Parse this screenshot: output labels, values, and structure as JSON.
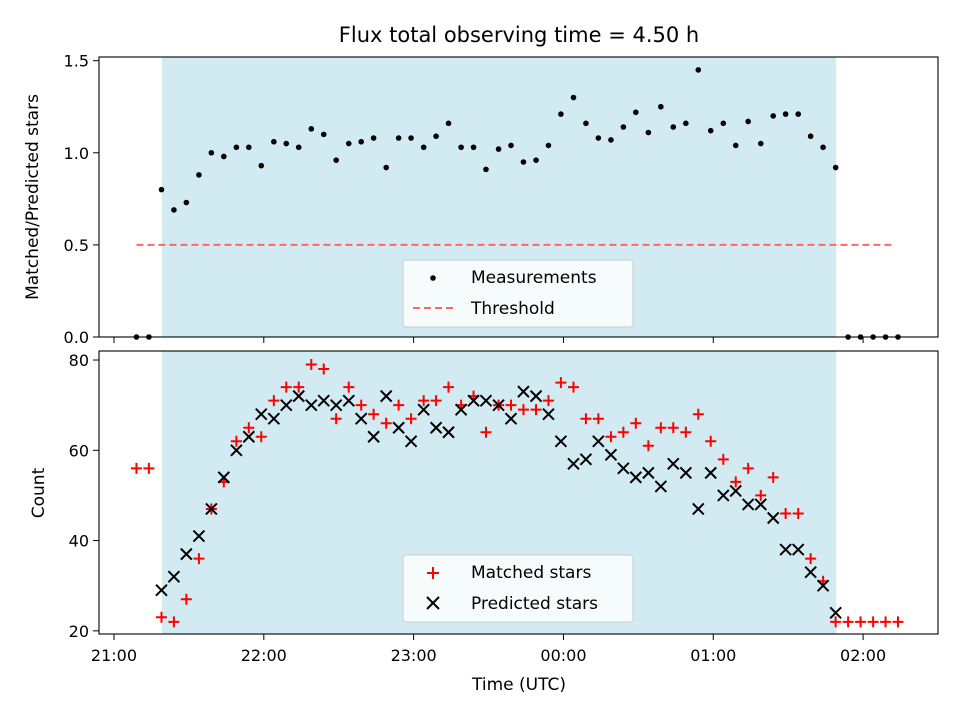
{
  "chart_data": [
    {
      "type": "scatter",
      "title": "Flux total observing time = 4.50 h",
      "ylabel": "Matched/Predicted stars",
      "xlabel": "",
      "ylim": [
        0,
        1.52
      ],
      "yticks": [
        0.0,
        0.5,
        1.0,
        1.5
      ],
      "ytick_labels": [
        "0.0",
        "0.5",
        "1.0",
        "1.5"
      ],
      "x_unit": "hours since 21:00 UTC",
      "shaded_interval": [
        0.32,
        4.82
      ],
      "shaded_color": "#add8e6",
      "threshold": {
        "name": "Threshold",
        "value": 0.5,
        "x_range": [
          0.15,
          5.2
        ],
        "color": "#ff6666",
        "style": "dashed"
      },
      "legend": {
        "position": "lower center",
        "entries": [
          "Measurements",
          "Threshold"
        ]
      },
      "series": [
        {
          "name": "Measurements",
          "color": "#000000",
          "marker": "dot",
          "x": [
            0.15,
            0.233,
            0.317,
            0.4,
            0.483,
            0.567,
            0.65,
            0.733,
            0.817,
            0.9,
            0.983,
            1.067,
            1.15,
            1.233,
            1.317,
            1.4,
            1.483,
            1.567,
            1.65,
            1.733,
            1.817,
            1.9,
            1.983,
            2.067,
            2.15,
            2.233,
            2.317,
            2.4,
            2.483,
            2.567,
            2.65,
            2.733,
            2.817,
            2.9,
            2.983,
            3.067,
            3.15,
            3.233,
            3.317,
            3.4,
            3.483,
            3.567,
            3.65,
            3.733,
            3.817,
            3.9,
            3.983,
            4.067,
            4.15,
            4.233,
            4.317,
            4.4,
            4.483,
            4.567,
            4.65,
            4.733,
            4.817,
            4.9,
            4.983,
            5.067,
            5.15,
            5.233
          ],
          "y": [
            0.0,
            0.0,
            0.8,
            0.69,
            0.73,
            0.88,
            1.0,
            0.98,
            1.03,
            1.03,
            0.93,
            1.06,
            1.05,
            1.03,
            1.13,
            1.1,
            0.96,
            1.05,
            1.06,
            1.08,
            0.92,
            1.08,
            1.08,
            1.03,
            1.09,
            1.16,
            1.03,
            1.03,
            0.91,
            1.02,
            1.04,
            0.95,
            0.96,
            1.04,
            1.21,
            1.3,
            1.16,
            1.08,
            1.07,
            1.14,
            1.22,
            1.11,
            1.25,
            1.14,
            1.16,
            1.45,
            1.12,
            1.16,
            1.04,
            1.17,
            1.05,
            1.2,
            1.21,
            1.21,
            1.09,
            1.03,
            0.92,
            0.0,
            0.0,
            0.0,
            0.0,
            0.0
          ]
        }
      ]
    },
    {
      "type": "scatter",
      "title": "",
      "xlabel": "Time (UTC)",
      "ylabel": "Count",
      "ylim": [
        19.3,
        82
      ],
      "yticks": [
        20,
        40,
        60,
        80
      ],
      "ytick_labels": [
        "20",
        "40",
        "60",
        "80"
      ],
      "x_unit": "hours since 21:00 UTC",
      "xlim": [
        -0.1,
        5.5
      ],
      "xticks": [
        0,
        1,
        2,
        3,
        4,
        5
      ],
      "xtick_labels": [
        "21:00",
        "22:00",
        "23:00",
        "00:00",
        "01:00",
        "02:00"
      ],
      "shaded_interval": [
        0.32,
        4.82
      ],
      "shaded_color": "#add8e6",
      "legend": {
        "position": "lower center",
        "entries": [
          "Matched stars",
          "Predicted stars"
        ]
      },
      "series": [
        {
          "name": "Matched stars",
          "color": "#ff0000",
          "marker": "plus",
          "x": [
            0.15,
            0.233,
            0.317,
            0.4,
            0.483,
            0.567,
            0.65,
            0.733,
            0.817,
            0.9,
            0.983,
            1.067,
            1.15,
            1.233,
            1.317,
            1.4,
            1.483,
            1.567,
            1.65,
            1.733,
            1.817,
            1.9,
            1.983,
            2.067,
            2.15,
            2.233,
            2.317,
            2.4,
            2.483,
            2.567,
            2.65,
            2.733,
            2.817,
            2.9,
            2.983,
            3.067,
            3.15,
            3.233,
            3.317,
            3.4,
            3.483,
            3.567,
            3.65,
            3.733,
            3.817,
            3.9,
            3.983,
            4.067,
            4.15,
            4.233,
            4.317,
            4.4,
            4.483,
            4.567,
            4.65,
            4.733,
            4.817,
            4.9,
            4.983,
            5.067,
            5.15,
            5.233
          ],
          "y": [
            56,
            56,
            23,
            22,
            27,
            36,
            47,
            53,
            62,
            65,
            63,
            71,
            74,
            74,
            79,
            78,
            67,
            74,
            70,
            68,
            66,
            70,
            67,
            71,
            71,
            74,
            70,
            72,
            64,
            70,
            70,
            69,
            69,
            71,
            75,
            74,
            67,
            67,
            63,
            64,
            66,
            61,
            65,
            65,
            64,
            68,
            62,
            58,
            53,
            56,
            50,
            54,
            46,
            46,
            36,
            31,
            22,
            22,
            22,
            22,
            22,
            22
          ]
        },
        {
          "name": "Predicted stars",
          "color": "#000000",
          "marker": "x",
          "x": [
            0.317,
            0.4,
            0.483,
            0.567,
            0.65,
            0.733,
            0.817,
            0.9,
            0.983,
            1.067,
            1.15,
            1.233,
            1.317,
            1.4,
            1.483,
            1.567,
            1.65,
            1.733,
            1.817,
            1.9,
            1.983,
            2.067,
            2.15,
            2.233,
            2.317,
            2.4,
            2.483,
            2.567,
            2.65,
            2.733,
            2.817,
            2.9,
            2.983,
            3.067,
            3.15,
            3.233,
            3.317,
            3.4,
            3.483,
            3.567,
            3.65,
            3.733,
            3.817,
            3.9,
            3.983,
            4.067,
            4.15,
            4.233,
            4.317,
            4.4,
            4.483,
            4.567,
            4.65,
            4.733,
            4.817
          ],
          "y": [
            29,
            32,
            37,
            41,
            47,
            54,
            60,
            63,
            68,
            67,
            70,
            72,
            70,
            71,
            70,
            71,
            67,
            63,
            72,
            65,
            62,
            69,
            65,
            64,
            69,
            71,
            71,
            70,
            67,
            73,
            72,
            68,
            62,
            57,
            58,
            62,
            59,
            56,
            54,
            55,
            52,
            57,
            55,
            47,
            55,
            50,
            51,
            48,
            48,
            45,
            38,
            38,
            33,
            30,
            24
          ]
        }
      ]
    }
  ]
}
